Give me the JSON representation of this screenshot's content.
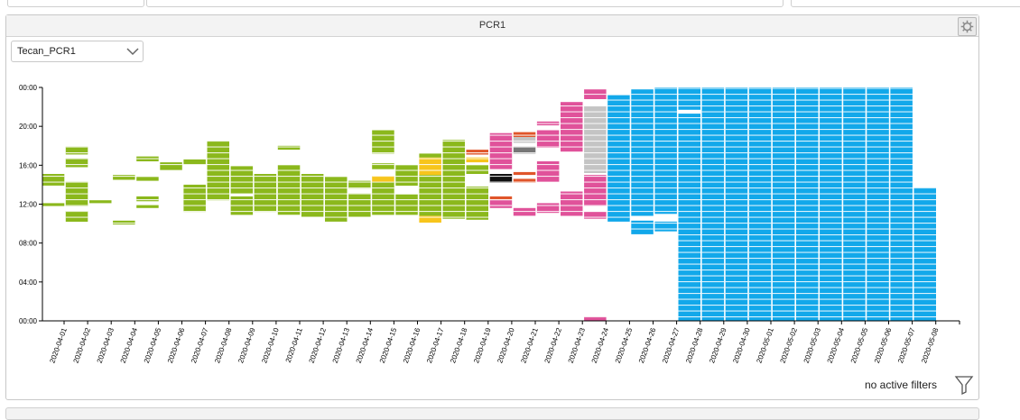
{
  "panel": {
    "title": "PCR1",
    "settings_icon": "gear-icon",
    "instrument_select": {
      "value": "Tecan_PCR1"
    },
    "filter_status": "no active filters",
    "filter_icon": "funnel-icon"
  },
  "chart_data": {
    "type": "heatmap",
    "title": "",
    "xlabel": "",
    "ylabel": "",
    "y_ticks": [
      "00:00",
      "04:00",
      "08:00",
      "12:00",
      "16:00",
      "20:00",
      "00:00"
    ],
    "ylim": [
      0,
      24
    ],
    "categories": [
      "2020-04-01",
      "2020-04-02",
      "2020-04-03",
      "2020-04-04",
      "2020-04-05",
      "2020-04-06",
      "2020-04-07",
      "2020-04-08",
      "2020-04-09",
      "2020-04-10",
      "2020-04-11",
      "2020-04-12",
      "2020-04-13",
      "2020-04-14",
      "2020-04-15",
      "2020-04-16",
      "2020-04-17",
      "2020-04-18",
      "2020-04-19",
      "2020-04-20",
      "2020-04-21",
      "2020-04-22",
      "2020-04-23",
      "2020-04-24",
      "2020-04-25",
      "2020-04-26",
      "2020-04-27",
      "2020-04-28",
      "2020-04-29",
      "2020-04-30",
      "2020-05-01",
      "2020-05-02",
      "2020-05-03",
      "2020-05-04",
      "2020-05-05",
      "2020-05-06",
      "2020-05-07",
      "2020-05-08"
    ],
    "colors": {
      "green": "#8bb81c",
      "yellow": "#f7c51c",
      "pink": "#e0529a",
      "black": "#111111",
      "orange": "#e0552a",
      "gray": "#c4c4c4",
      "darkgray": "#777777",
      "blue": "#12a8ea"
    },
    "days": [
      {
        "blocks": [
          [
            11.8,
            12.1,
            "green"
          ],
          [
            13.9,
            15.1,
            "green"
          ]
        ]
      },
      {
        "blocks": [
          [
            10.2,
            11.3,
            "green"
          ],
          [
            11.8,
            14.3,
            "green"
          ],
          [
            15.8,
            16.7,
            "green"
          ],
          [
            17.1,
            17.9,
            "green"
          ]
        ]
      },
      {
        "blocks": [
          [
            12.1,
            12.4,
            "green"
          ]
        ]
      },
      {
        "blocks": [
          [
            9.9,
            10.3,
            "green"
          ],
          [
            14.5,
            15.0,
            "green"
          ]
        ]
      },
      {
        "blocks": [
          [
            11.6,
            11.9,
            "green"
          ],
          [
            12.3,
            12.8,
            "green"
          ],
          [
            14.4,
            14.8,
            "green"
          ],
          [
            16.4,
            16.9,
            "green"
          ]
        ]
      },
      {
        "blocks": [
          [
            15.5,
            16.3,
            "green"
          ]
        ]
      },
      {
        "blocks": [
          [
            11.2,
            14.0,
            "green"
          ],
          [
            16.1,
            16.6,
            "green"
          ]
        ]
      },
      {
        "blocks": [
          [
            12.4,
            18.5,
            "green"
          ]
        ]
      },
      {
        "blocks": [
          [
            10.9,
            12.8,
            "green"
          ],
          [
            13.1,
            15.9,
            "green"
          ]
        ]
      },
      {
        "blocks": [
          [
            11.2,
            15.1,
            "green"
          ]
        ]
      },
      {
        "blocks": [
          [
            10.9,
            16.0,
            "green"
          ],
          [
            17.6,
            18.0,
            "green"
          ]
        ]
      },
      {
        "blocks": [
          [
            10.7,
            15.1,
            "green"
          ]
        ]
      },
      {
        "blocks": [
          [
            10.2,
            14.8,
            "green"
          ]
        ]
      },
      {
        "blocks": [
          [
            10.7,
            13.1,
            "green"
          ],
          [
            13.6,
            14.4,
            "green"
          ]
        ]
      },
      {
        "blocks": [
          [
            10.9,
            14.3,
            "green"
          ],
          [
            14.3,
            14.9,
            "yellow"
          ],
          [
            15.6,
            16.2,
            "green"
          ],
          [
            17.2,
            19.6,
            "green"
          ]
        ]
      },
      {
        "blocks": [
          [
            10.9,
            13.0,
            "green"
          ],
          [
            13.9,
            16.0,
            "green"
          ]
        ]
      },
      {
        "blocks": [
          [
            10.1,
            10.8,
            "yellow"
          ],
          [
            10.8,
            15.0,
            "green"
          ],
          [
            15.0,
            16.8,
            "yellow"
          ],
          [
            16.8,
            17.2,
            "green"
          ]
        ]
      },
      {
        "blocks": [
          [
            10.5,
            18.6,
            "green"
          ]
        ]
      },
      {
        "blocks": [
          [
            10.4,
            13.8,
            "green"
          ],
          [
            15.1,
            16.0,
            "green"
          ],
          [
            16.3,
            16.8,
            "yellow"
          ],
          [
            17.1,
            17.6,
            "orange"
          ]
        ]
      },
      {
        "blocks": [
          [
            11.6,
            12.4,
            "pink"
          ],
          [
            12.5,
            12.8,
            "orange"
          ],
          [
            14.2,
            15.1,
            "black"
          ],
          [
            15.6,
            19.3,
            "pink"
          ]
        ]
      },
      {
        "blocks": [
          [
            10.8,
            11.6,
            "pink"
          ],
          [
            14.2,
            14.6,
            "orange"
          ],
          [
            15.0,
            15.3,
            "orange"
          ],
          [
            17.2,
            17.9,
            "darkgray"
          ],
          [
            18.3,
            18.9,
            "gray"
          ],
          [
            18.9,
            19.4,
            "orange"
          ]
        ]
      },
      {
        "blocks": [
          [
            11.1,
            12.1,
            "pink"
          ],
          [
            14.3,
            16.4,
            "pink"
          ],
          [
            17.8,
            19.6,
            "pink"
          ],
          [
            20.1,
            20.5,
            "pink"
          ]
        ]
      },
      {
        "blocks": [
          [
            10.8,
            13.3,
            "pink"
          ],
          [
            17.4,
            22.5,
            "pink"
          ]
        ]
      },
      {
        "blocks": [
          [
            0.0,
            0.4,
            "pink"
          ],
          [
            10.5,
            11.2,
            "pink"
          ],
          [
            11.8,
            15.0,
            "pink"
          ],
          [
            15.2,
            22.1,
            "gray"
          ],
          [
            22.8,
            23.8,
            "pink"
          ]
        ]
      },
      {
        "blocks": [
          [
            10.2,
            23.2,
            "blue"
          ]
        ]
      },
      {
        "blocks": [
          [
            8.9,
            10.3,
            "blue"
          ],
          [
            10.8,
            23.8,
            "blue"
          ]
        ]
      },
      {
        "blocks": [
          [
            9.2,
            10.2,
            "blue"
          ],
          [
            11.0,
            24.0,
            "blue"
          ]
        ]
      },
      {
        "blocks": [
          [
            0.0,
            21.3,
            "blue"
          ],
          [
            21.7,
            24.0,
            "blue"
          ]
        ]
      },
      {
        "blocks": [
          [
            0.0,
            24.0,
            "blue"
          ]
        ]
      },
      {
        "blocks": [
          [
            0.0,
            24.0,
            "blue"
          ]
        ]
      },
      {
        "blocks": [
          [
            0.0,
            24.0,
            "blue"
          ]
        ]
      },
      {
        "blocks": [
          [
            0.0,
            24.0,
            "blue"
          ]
        ]
      },
      {
        "blocks": [
          [
            0.0,
            24.0,
            "blue"
          ]
        ]
      },
      {
        "blocks": [
          [
            0.0,
            24.0,
            "blue"
          ]
        ]
      },
      {
        "blocks": [
          [
            0.0,
            24.0,
            "blue"
          ]
        ]
      },
      {
        "blocks": [
          [
            0.0,
            24.0,
            "blue"
          ]
        ]
      },
      {
        "blocks": [
          [
            0.0,
            24.0,
            "blue"
          ]
        ]
      },
      {
        "blocks": [
          [
            0.0,
            13.7,
            "blue"
          ]
        ]
      }
    ]
  }
}
